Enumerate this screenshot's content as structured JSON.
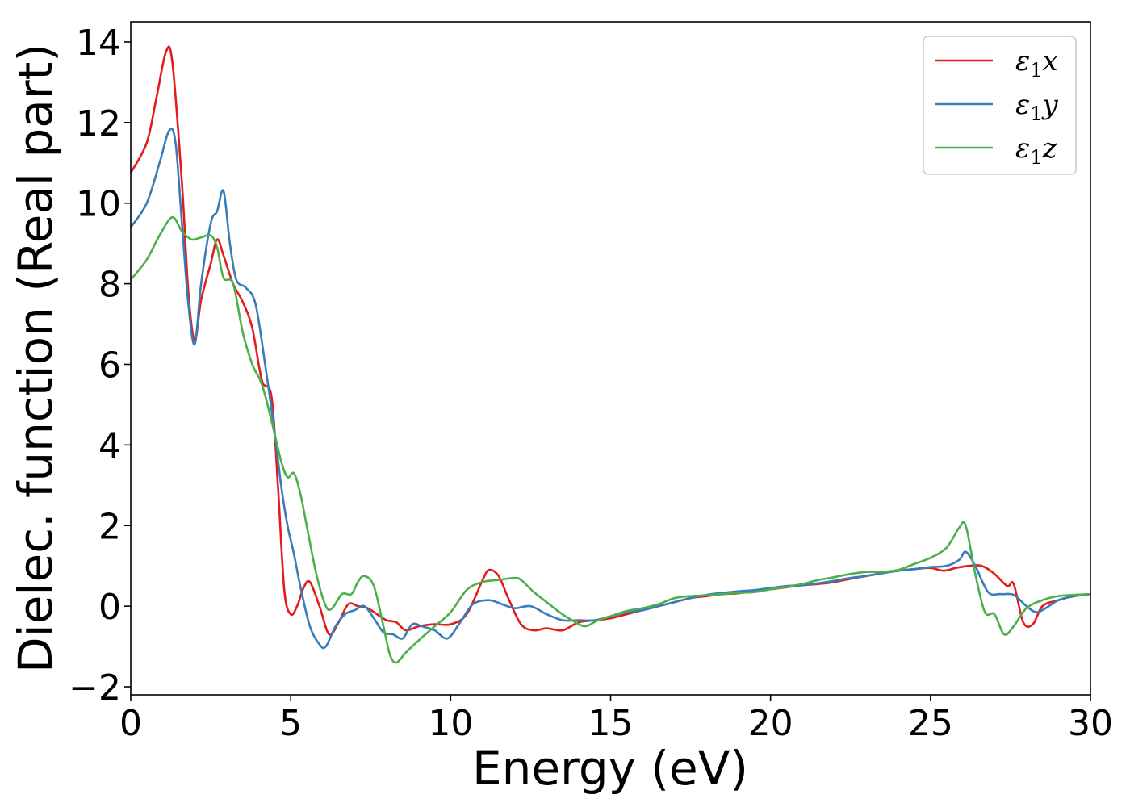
{
  "chart_data": {
    "type": "line",
    "title": "",
    "xlabel": "Energy (eV)",
    "ylabel": "Dielec. function (Real part)",
    "xlim": [
      0,
      30
    ],
    "ylim": [
      -2.2,
      14.5
    ],
    "xticks": [
      0,
      5,
      10,
      15,
      20,
      25,
      30
    ],
    "xtick_labels": [
      "0",
      "5",
      "10",
      "15",
      "20",
      "25",
      "30"
    ],
    "yticks": [
      -2,
      0,
      2,
      4,
      6,
      8,
      10,
      12,
      14
    ],
    "ytick_labels": [
      "−2",
      "0",
      "2",
      "4",
      "6",
      "8",
      "10",
      "12",
      "14"
    ],
    "grid": false,
    "legend_position": "top-right",
    "series": [
      {
        "name": "ε₁x",
        "legend_base": "ε",
        "legend_sub": "1",
        "legend_suffix": "x",
        "color": "#e41a1c",
        "x": [
          0,
          0.5,
          0.8,
          1.1,
          1.3,
          1.6,
          1.8,
          2.0,
          2.2,
          2.5,
          2.7,
          2.9,
          3.2,
          3.5,
          3.8,
          4.1,
          4.4,
          4.6,
          4.8,
          5.0,
          5.2,
          5.4,
          5.6,
          5.9,
          6.2,
          6.5,
          6.8,
          7.1,
          7.4,
          7.7,
          8.0,
          8.3,
          8.6,
          9.0,
          9.5,
          10.0,
          10.5,
          11.0,
          11.2,
          11.5,
          11.8,
          12.2,
          12.6,
          13.0,
          13.5,
          14.0,
          14.5,
          15.0,
          15.5,
          16.0,
          16.5,
          17.0,
          17.5,
          18.0,
          18.5,
          19.0,
          19.5,
          20.0,
          20.5,
          21.0,
          21.5,
          22.0,
          22.5,
          23.0,
          23.5,
          24.0,
          24.5,
          25.0,
          25.4,
          25.8,
          26.2,
          26.6,
          27.0,
          27.4,
          27.6,
          27.9,
          28.2,
          28.5,
          29.0,
          29.5,
          30.0
        ],
        "y": [
          10.75,
          11.5,
          12.6,
          13.75,
          13.5,
          10.5,
          7.8,
          6.6,
          7.6,
          8.5,
          9.1,
          8.7,
          8.0,
          7.55,
          6.9,
          5.6,
          5.2,
          3.0,
          0.4,
          -0.2,
          0.0,
          0.45,
          0.6,
          0.0,
          -0.7,
          -0.4,
          0.05,
          0.0,
          -0.05,
          -0.2,
          -0.35,
          -0.4,
          -0.6,
          -0.5,
          -0.45,
          -0.45,
          -0.2,
          0.65,
          0.9,
          0.75,
          0.2,
          -0.45,
          -0.6,
          -0.55,
          -0.6,
          -0.4,
          -0.35,
          -0.3,
          -0.2,
          -0.1,
          0.0,
          0.1,
          0.2,
          0.25,
          0.3,
          0.32,
          0.38,
          0.42,
          0.47,
          0.52,
          0.55,
          0.6,
          0.68,
          0.75,
          0.82,
          0.88,
          0.92,
          0.95,
          0.88,
          0.95,
          1.0,
          1.0,
          0.8,
          0.5,
          0.55,
          -0.4,
          -0.45,
          0.0,
          0.15,
          0.25,
          0.3
        ]
      },
      {
        "name": "ε₁y",
        "legend_base": "ε",
        "legend_sub": "1",
        "legend_suffix": "y",
        "color": "#377eb8",
        "x": [
          0,
          0.5,
          0.9,
          1.2,
          1.4,
          1.6,
          1.8,
          2.0,
          2.2,
          2.5,
          2.7,
          2.9,
          3.1,
          3.3,
          3.6,
          3.9,
          4.2,
          4.5,
          4.7,
          4.9,
          5.1,
          5.3,
          5.6,
          5.9,
          6.1,
          6.4,
          6.7,
          7.0,
          7.3,
          7.6,
          7.9,
          8.2,
          8.5,
          8.8,
          9.1,
          9.5,
          9.9,
          10.3,
          10.7,
          11.2,
          11.6,
          12.0,
          12.5,
          13.0,
          13.5,
          14.0,
          14.5,
          15.0,
          15.5,
          16.0,
          16.5,
          17.0,
          17.5,
          18.0,
          18.5,
          19.0,
          19.5,
          20.0,
          20.5,
          21.0,
          21.5,
          22.0,
          22.5,
          23.0,
          23.5,
          24.0,
          24.5,
          25.0,
          25.5,
          25.9,
          26.1,
          26.4,
          26.8,
          27.2,
          27.6,
          28.0,
          28.3,
          28.6,
          29.0,
          29.5,
          30.0
        ],
        "y": [
          9.4,
          10.0,
          11.0,
          11.8,
          11.5,
          9.5,
          7.5,
          6.5,
          8.0,
          9.5,
          9.8,
          10.3,
          9.0,
          8.1,
          7.9,
          7.5,
          6.0,
          4.3,
          3.0,
          2.0,
          1.3,
          0.5,
          -0.5,
          -0.95,
          -1.0,
          -0.5,
          -0.2,
          -0.1,
          0.0,
          -0.3,
          -0.65,
          -0.7,
          -0.8,
          -0.45,
          -0.5,
          -0.6,
          -0.8,
          -0.4,
          0.05,
          0.15,
          0.05,
          -0.05,
          0.0,
          -0.2,
          -0.35,
          -0.35,
          -0.35,
          -0.25,
          -0.15,
          -0.1,
          0.0,
          0.1,
          0.2,
          0.28,
          0.33,
          0.37,
          0.4,
          0.45,
          0.5,
          0.52,
          0.57,
          0.63,
          0.7,
          0.75,
          0.82,
          0.88,
          0.92,
          0.97,
          1.0,
          1.15,
          1.35,
          1.0,
          0.35,
          0.3,
          0.28,
          0.0,
          -0.15,
          -0.05,
          0.15,
          0.25,
          0.3
        ]
      },
      {
        "name": "ε₁z",
        "legend_base": "ε",
        "legend_sub": "1",
        "legend_suffix": "z",
        "color": "#4daf4a",
        "x": [
          0,
          0.5,
          0.9,
          1.3,
          1.6,
          1.9,
          2.2,
          2.5,
          2.7,
          2.9,
          3.2,
          3.5,
          3.8,
          4.1,
          4.4,
          4.7,
          4.9,
          5.1,
          5.3,
          5.5,
          5.8,
          6.1,
          6.3,
          6.6,
          6.9,
          7.1,
          7.3,
          7.6,
          7.9,
          8.1,
          8.3,
          8.6,
          9.0,
          9.5,
          10.0,
          10.5,
          11.0,
          11.5,
          12.0,
          12.2,
          12.6,
          13.0,
          13.4,
          13.8,
          14.2,
          14.6,
          15.0,
          15.5,
          16.0,
          16.5,
          17.0,
          17.5,
          18.0,
          18.5,
          19.0,
          19.5,
          20.0,
          20.5,
          21.0,
          21.5,
          22.0,
          22.5,
          23.0,
          23.5,
          24.0,
          24.5,
          25.0,
          25.5,
          25.9,
          26.1,
          26.4,
          26.7,
          27.0,
          27.3,
          27.6,
          28.0,
          28.5,
          29.0,
          29.5,
          30.0
        ],
        "y": [
          8.1,
          8.6,
          9.2,
          9.65,
          9.3,
          9.1,
          9.15,
          9.2,
          8.9,
          8.15,
          8.0,
          6.8,
          6.0,
          5.5,
          4.6,
          3.6,
          3.2,
          3.3,
          2.8,
          2.0,
          0.8,
          0.0,
          -0.05,
          0.3,
          0.3,
          0.6,
          0.75,
          0.5,
          -0.5,
          -1.2,
          -1.4,
          -1.15,
          -0.85,
          -0.5,
          -0.15,
          0.4,
          0.6,
          0.65,
          0.7,
          0.65,
          0.35,
          0.1,
          -0.15,
          -0.35,
          -0.5,
          -0.35,
          -0.25,
          -0.12,
          -0.05,
          0.05,
          0.2,
          0.25,
          0.27,
          0.3,
          0.33,
          0.35,
          0.42,
          0.48,
          0.55,
          0.65,
          0.72,
          0.8,
          0.85,
          0.85,
          0.9,
          1.05,
          1.2,
          1.45,
          1.95,
          2.0,
          0.8,
          -0.15,
          -0.2,
          -0.7,
          -0.5,
          -0.05,
          0.15,
          0.25,
          0.28,
          0.3
        ]
      }
    ]
  }
}
